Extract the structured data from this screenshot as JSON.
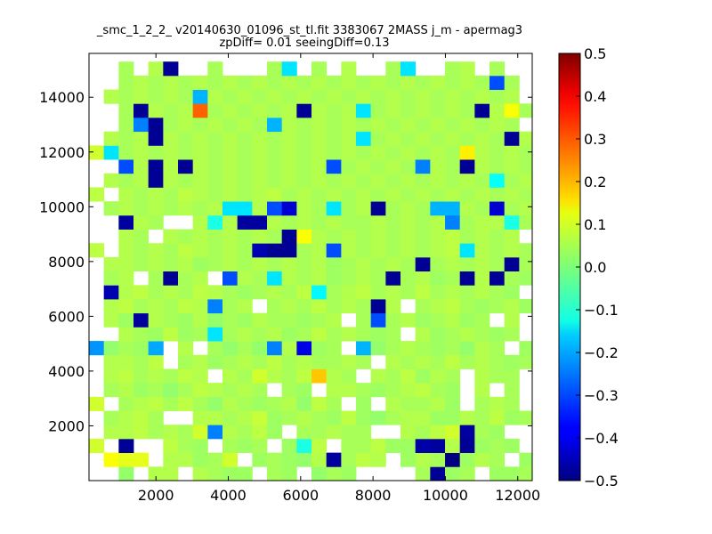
{
  "chart_data": {
    "type": "heatmap",
    "title": "_smc_1_2_2_ v20140630_01096_st_tl.fit 3383067 2MASS j_m - apermag3",
    "subtitle": "zpDiff= 0.01 seeingDiff=0.13",
    "xlabel": "",
    "ylabel": "",
    "xlim": [
      150,
      12400
    ],
    "ylim": [
      0,
      15600
    ],
    "grid": false,
    "colormap": "jet",
    "color_range": [
      -0.5,
      0.5
    ],
    "xticks": [
      2000,
      4000,
      6000,
      8000,
      10000,
      12000
    ],
    "yticks": [
      2000,
      4000,
      6000,
      8000,
      10000,
      12000,
      14000
    ],
    "colorbar_ticks": [
      -0.5,
      -0.4,
      -0.3,
      -0.2,
      -0.1,
      0.0,
      0.1,
      0.2,
      0.3,
      0.4,
      0.5
    ],
    "colorbar_tick_labels": [
      "−0.5",
      "−0.4",
      "−0.3",
      "−0.2",
      "−0.1",
      "0.0",
      "0.1",
      "0.2",
      "0.3",
      "0.4",
      "0.5"
    ],
    "cell_width": 410,
    "cell_height": 510,
    "x_start": 150,
    "y_start": 0,
    "notes": "Approximate residuals (j_m - apermag3) per spatial bin; null = empty bin. Row 0 is the bottom row.",
    "grid_values": [
      [
        null,
        null,
        0.02,
        null,
        0.05,
        0.05,
        null,
        0.05,
        0.04,
        0.03,
        0.03,
        null,
        0.04,
        0.03,
        null,
        0.02,
        0.04,
        0.03,
        null,
        null,
        null,
        null,
        0.04,
        -0.48,
        0.03,
        0.04,
        null,
        0.03,
        0.03,
        0.04
      ],
      [
        null,
        0.12,
        0.1,
        0.1,
        null,
        0.05,
        0.05,
        0.03,
        0.04,
        0.08,
        null,
        0.03,
        0.04,
        0.03,
        0.02,
        0.05,
        -0.47,
        0.04,
        0.06,
        0.05,
        null,
        0.03,
        0.05,
        0.04,
        -0.5,
        0.03,
        0.05,
        0.04,
        null,
        0.03
      ],
      [
        0.08,
        null,
        -0.48,
        null,
        null,
        0.06,
        0.04,
        0.03,
        null,
        0.04,
        0.03,
        0.04,
        null,
        0.03,
        -0.1,
        0.06,
        null,
        0.04,
        0.04,
        0.06,
        0.03,
        0.03,
        -0.46,
        -0.47,
        0.05,
        -0.48,
        0.03,
        0.04,
        0.03,
        null
      ],
      [
        null,
        0.05,
        0.05,
        0.06,
        0.04,
        0.05,
        0.04,
        0.08,
        -0.25,
        0.05,
        0.04,
        0.06,
        0.03,
        null,
        0.04,
        0.04,
        0.05,
        0.04,
        0.04,
        null,
        null,
        0.05,
        0.04,
        0.06,
        0.08,
        -0.47,
        0.04,
        0.03,
        null,
        null
      ],
      [
        null,
        0.04,
        0.05,
        0.06,
        0.04,
        null,
        null,
        0.05,
        0.05,
        0.04,
        0.05,
        0.07,
        0.03,
        0.04,
        0.05,
        0.04,
        0.03,
        0.06,
        0.03,
        0.02,
        0.04,
        0.05,
        0.05,
        0.03,
        0.03,
        0.05,
        0.04,
        0.06,
        0.03,
        0.04
      ],
      [
        0.08,
        null,
        0.04,
        0.05,
        0.06,
        0.04,
        0.06,
        0.04,
        0.02,
        0.05,
        0.04,
        0.03,
        0.04,
        0.05,
        0.02,
        0.06,
        0.04,
        null,
        0.03,
        null,
        0.05,
        0.04,
        0.04,
        0.05,
        0.03,
        null,
        0.04,
        0.05,
        0.04,
        null
      ],
      [
        null,
        0.04,
        0.05,
        0.03,
        0.04,
        0.02,
        0.04,
        0.06,
        0.05,
        0.04,
        0.05,
        0.04,
        null,
        0.04,
        0.03,
        null,
        0.05,
        0.05,
        0.04,
        0.03,
        0.04,
        0.05,
        0.06,
        0.04,
        0.03,
        null,
        0.05,
        null,
        0.04,
        null
      ],
      [
        null,
        0.05,
        0.06,
        0.04,
        0.05,
        0.04,
        0.06,
        0.05,
        null,
        0.05,
        0.04,
        0.08,
        0.05,
        0.04,
        0.06,
        0.18,
        0.05,
        0.04,
        null,
        0.05,
        0.04,
        0.06,
        0.03,
        0.05,
        0.04,
        null,
        0.05,
        0.04,
        0.04,
        null
      ],
      [
        null,
        0.05,
        0.05,
        0.04,
        0.06,
        null,
        0.04,
        0.05,
        0.03,
        0.04,
        0.05,
        0.04,
        0.06,
        0.04,
        0.05,
        0.04,
        0.04,
        0.05,
        0.04,
        null,
        0.05,
        0.04,
        0.05,
        0.04,
        0.06,
        0.04,
        0.05,
        0.04,
        0.03,
        0.04
      ],
      [
        -0.23,
        0.02,
        0.04,
        0.03,
        -0.21,
        null,
        0.05,
        null,
        0.04,
        0.02,
        0.04,
        0.02,
        -0.25,
        0.05,
        -0.4,
        0.03,
        0.04,
        null,
        -0.2,
        0.02,
        0.04,
        0.05,
        0.04,
        0.03,
        0.04,
        0.02,
        0.05,
        0.04,
        null,
        0.03
      ],
      [
        null,
        null,
        0.05,
        0.04,
        0.03,
        0.06,
        0.03,
        0.04,
        -0.15,
        0.04,
        0.05,
        0.04,
        0.05,
        0.03,
        0.04,
        0.06,
        0.04,
        0.05,
        0.04,
        0.03,
        0.04,
        null,
        0.05,
        0.03,
        0.04,
        0.05,
        0.04,
        0.03,
        0.04,
        null
      ],
      [
        null,
        0.05,
        0.03,
        -0.47,
        0.05,
        0.04,
        0.03,
        0.05,
        0.02,
        0.04,
        0.03,
        0.05,
        0.04,
        0.04,
        0.03,
        0.04,
        0.05,
        null,
        0.04,
        -0.3,
        0.04,
        0.05,
        0.03,
        0.04,
        0.05,
        0.03,
        0.04,
        null,
        0.05,
        null
      ],
      [
        null,
        0.05,
        0.06,
        0.04,
        0.05,
        0.04,
        0.06,
        0.05,
        -0.25,
        0.04,
        0.05,
        null,
        0.04,
        0.05,
        0.04,
        0.06,
        0.04,
        0.05,
        0.04,
        -0.48,
        0.05,
        null,
        0.04,
        0.05,
        0.06,
        0.04,
        0.03,
        0.04,
        0.05,
        0.03
      ],
      [
        null,
        -0.45,
        0.05,
        0.06,
        0.04,
        0.05,
        0.04,
        0.06,
        0.05,
        0.04,
        0.03,
        0.04,
        0.05,
        0.04,
        0.06,
        -0.13,
        0.04,
        0.05,
        0.06,
        0.04,
        0.05,
        0.04,
        0.06,
        0.04,
        0.05,
        0.04,
        0.05,
        0.04,
        0.03,
        null
      ],
      [
        null,
        0.04,
        0.05,
        null,
        0.04,
        -0.48,
        0.04,
        0.05,
        null,
        -0.3,
        0.05,
        0.04,
        -0.15,
        0.05,
        0.04,
        0.05,
        0.03,
        0.04,
        0.05,
        0.04,
        -0.48,
        0.04,
        0.05,
        0.03,
        0.04,
        -0.48,
        0.05,
        -0.48,
        0.04,
        0.03
      ],
      [
        null,
        0.05,
        0.05,
        0.04,
        0.05,
        0.04,
        0.05,
        0.03,
        0.04,
        0.05,
        0.04,
        0.05,
        0.04,
        0.05,
        0.04,
        0.05,
        0.03,
        0.04,
        0.05,
        0.04,
        0.05,
        0.04,
        -0.48,
        0.04,
        0.05,
        0.04,
        0.05,
        0.04,
        -0.48,
        0.04
      ],
      [
        0.06,
        null,
        0.05,
        0.04,
        0.05,
        0.04,
        0.06,
        0.05,
        0.04,
        0.05,
        0.04,
        -0.45,
        -0.48,
        -0.48,
        0.04,
        0.05,
        -0.3,
        0.05,
        0.04,
        0.05,
        0.04,
        0.05,
        0.04,
        0.05,
        0.06,
        -0.15,
        0.05,
        0.04,
        0.05,
        0.04
      ],
      [
        null,
        null,
        0.05,
        0.04,
        null,
        0.05,
        0.04,
        0.05,
        0.04,
        0.05,
        0.04,
        0.05,
        0.04,
        -0.48,
        0.12,
        0.05,
        0.04,
        0.05,
        0.04,
        0.05,
        0.04,
        0.05,
        0.04,
        0.05,
        0.06,
        0.04,
        0.05,
        0.04,
        0.05,
        null
      ],
      [
        null,
        null,
        -0.47,
        0.05,
        0.04,
        null,
        null,
        0.05,
        -0.1,
        0.05,
        -0.47,
        -0.47,
        0.05,
        0.04,
        0.05,
        0.04,
        0.05,
        0.04,
        0.04,
        0.05,
        0.04,
        0.05,
        0.04,
        0.05,
        -0.25,
        0.04,
        0.05,
        0.05,
        -0.1,
        0.04
      ],
      [
        null,
        0.04,
        0.05,
        0.04,
        0.05,
        0.04,
        0.05,
        0.04,
        0.05,
        -0.15,
        -0.15,
        0.05,
        -0.3,
        -0.42,
        0.05,
        0.04,
        -0.15,
        0.04,
        0.05,
        -0.48,
        0.04,
        0.05,
        0.04,
        -0.2,
        -0.2,
        0.05,
        0.04,
        -0.42,
        0.04,
        0.05
      ],
      [
        0.06,
        null,
        0.05,
        0.04,
        0.05,
        0.04,
        0.06,
        0.05,
        0.04,
        0.05,
        0.04,
        0.05,
        0.06,
        0.04,
        0.05,
        0.04,
        0.05,
        0.04,
        0.05,
        0.04,
        0.05,
        0.04,
        0.05,
        0.04,
        0.05,
        0.04,
        0.05,
        0.04,
        0.05,
        0.04
      ],
      [
        null,
        0.05,
        0.04,
        0.05,
        -0.48,
        0.05,
        0.04,
        0.05,
        0.04,
        0.05,
        0.04,
        0.05,
        0.04,
        0.05,
        0.04,
        0.05,
        0.04,
        0.05,
        0.04,
        0.05,
        0.04,
        0.05,
        0.04,
        0.05,
        0.04,
        0.05,
        0.04,
        -0.12,
        0.04,
        0.05
      ],
      [
        null,
        null,
        -0.3,
        0.05,
        -0.48,
        0.05,
        -0.48,
        0.05,
        0.04,
        0.05,
        0.04,
        0.05,
        0.04,
        0.05,
        0.04,
        0.05,
        -0.3,
        0.04,
        0.05,
        0.04,
        0.05,
        0.04,
        -0.25,
        0.05,
        0.04,
        -0.48,
        0.05,
        0.04,
        0.05,
        0.04
      ],
      [
        0.08,
        -0.15,
        0.04,
        0.05,
        0.04,
        0.05,
        0.04,
        0.05,
        0.04,
        0.05,
        0.04,
        0.05,
        0.04,
        0.05,
        0.04,
        0.05,
        0.04,
        0.05,
        0.04,
        0.05,
        0.04,
        0.05,
        0.04,
        0.05,
        0.04,
        0.14,
        0.05,
        0.04,
        0.05,
        0.04
      ],
      [
        null,
        0.05,
        0.04,
        0.05,
        -0.48,
        0.05,
        0.04,
        0.05,
        0.04,
        0.05,
        0.04,
        0.05,
        0.04,
        0.05,
        0.04,
        0.05,
        0.04,
        0.05,
        -0.15,
        0.04,
        0.05,
        0.04,
        0.05,
        0.04,
        0.05,
        0.04,
        0.05,
        0.04,
        -0.48,
        0.05
      ],
      [
        null,
        null,
        0.04,
        -0.25,
        -0.48,
        0.04,
        0.05,
        0.04,
        0.05,
        0.04,
        0.05,
        0.04,
        -0.2,
        0.05,
        0.04,
        0.05,
        0.04,
        0.05,
        0.04,
        0.05,
        0.04,
        0.05,
        0.04,
        0.05,
        0.04,
        0.05,
        0.04,
        0.05,
        0.04,
        null
      ],
      [
        null,
        null,
        0.04,
        -0.48,
        0.05,
        0.04,
        0.05,
        0.28,
        0.04,
        0.05,
        0.04,
        0.05,
        0.04,
        0.05,
        -0.48,
        0.05,
        0.04,
        0.05,
        -0.15,
        0.04,
        0.05,
        0.04,
        0.05,
        0.04,
        0.05,
        0.04,
        -0.48,
        0.05,
        0.12,
        0.04
      ],
      [
        null,
        0.05,
        0.04,
        0.05,
        0.04,
        0.05,
        0.04,
        -0.2,
        0.05,
        0.04,
        0.05,
        0.04,
        0.05,
        0.04,
        0.05,
        0.04,
        0.05,
        0.04,
        0.05,
        0.04,
        0.05,
        0.04,
        0.05,
        0.04,
        0.05,
        0.04,
        0.05,
        0.04,
        0.05,
        null
      ],
      [
        null,
        null,
        0.04,
        0.05,
        0.04,
        0.05,
        0.04,
        0.05,
        0.04,
        0.05,
        0.04,
        0.05,
        0.04,
        0.05,
        0.04,
        0.05,
        0.04,
        0.05,
        0.04,
        0.05,
        0.04,
        0.05,
        0.04,
        0.05,
        0.04,
        0.05,
        0.04,
        -0.3,
        0.04,
        null
      ],
      [
        null,
        null,
        0.04,
        null,
        0.05,
        -0.48,
        null,
        null,
        0.04,
        null,
        null,
        null,
        0.04,
        -0.15,
        null,
        0.04,
        null,
        0.05,
        null,
        null,
        0.04,
        -0.15,
        null,
        null,
        0.04,
        0.05,
        null,
        0.04,
        null,
        null
      ]
    ]
  }
}
